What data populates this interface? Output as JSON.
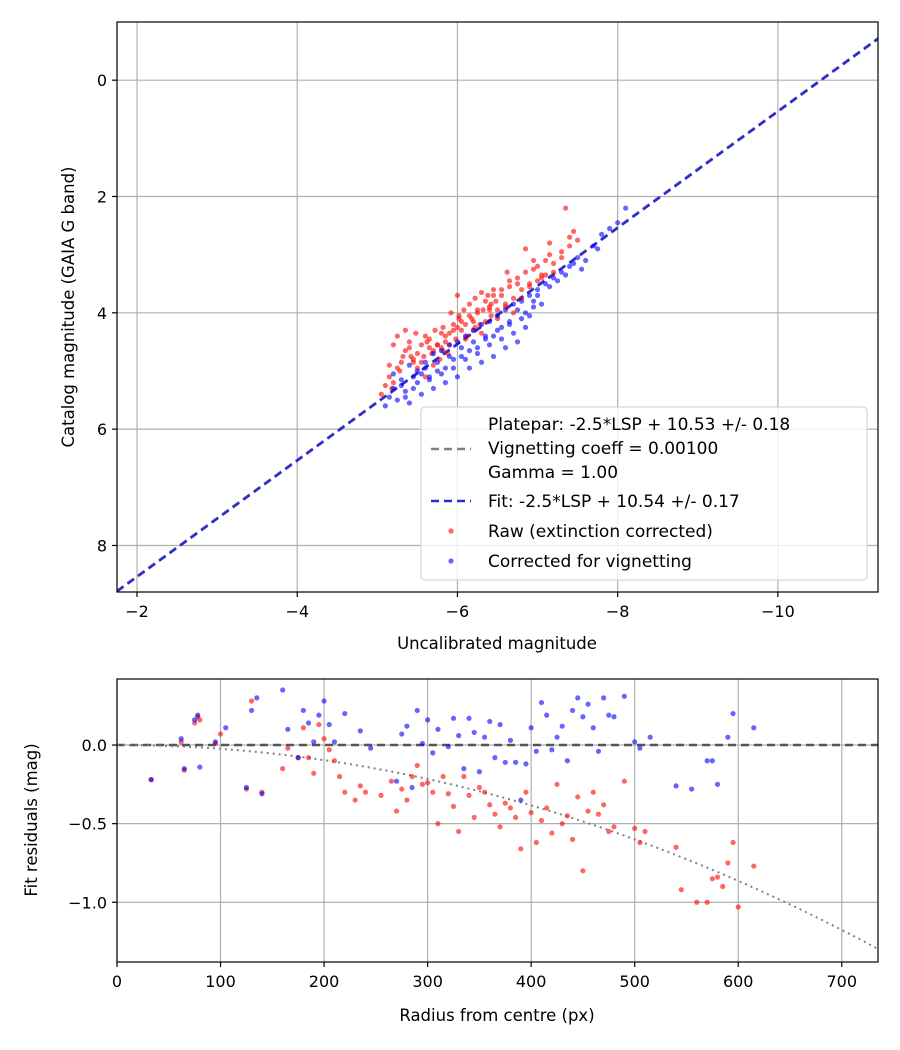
{
  "chart_data": [
    {
      "type": "scatter",
      "title": "",
      "xlabel": "Uncalibrated magnitude",
      "ylabel": "Catalog magnitude (GAIA G band)",
      "xlim": [
        -1.75,
        -11.25
      ],
      "ylim": [
        8.8,
        -1.0
      ],
      "x_ticks": [
        -2,
        -4,
        -6,
        -8,
        -10
      ],
      "x_tick_labels": [
        "−2",
        "−4",
        "−6",
        "−8",
        "−10"
      ],
      "y_ticks": [
        0,
        2,
        4,
        6,
        8
      ],
      "y_tick_labels": [
        "0",
        "2",
        "4",
        "6",
        "8"
      ],
      "grid": true,
      "legend_position": "lower-right",
      "legend": [
        {
          "label": "Platepar: -2.5*LSP + 10.53 +/- 0.18",
          "style": "none"
        },
        {
          "label": "Vignetting coeff = 0.00100",
          "style": "dashed",
          "color": "#808080"
        },
        {
          "label": "Gamma = 1.00",
          "style": "none"
        },
        {
          "label": "Fit: -2.5*LSP + 10.54 +/- 0.17",
          "style": "dashed",
          "color": "#2b2bd6"
        },
        {
          "label": "Raw (extinction corrected)",
          "style": "marker",
          "color": "#ff0000"
        },
        {
          "label": "Corrected for vignetting",
          "style": "marker",
          "color": "#0000ff"
        }
      ],
      "lines": [
        {
          "name": "Platepar",
          "slope": 1.0,
          "intercept": 10.53,
          "style": "dashed",
          "color": "#808080"
        },
        {
          "name": "Fit",
          "slope": 1.0,
          "intercept": 10.54,
          "style": "dashed",
          "color": "#2b2bd6"
        }
      ],
      "series": [
        {
          "name": "Raw (extinction corrected)",
          "color": "#ff0000",
          "x": [
            -5.05,
            -5.1,
            -5.15,
            -5.2,
            -5.25,
            -5.28,
            -5.32,
            -5.35,
            -5.4,
            -5.45,
            -5.48,
            -5.5,
            -5.55,
            -5.58,
            -5.6,
            -5.65,
            -5.68,
            -5.7,
            -5.72,
            -5.75,
            -5.78,
            -5.8,
            -5.82,
            -5.85,
            -5.88,
            -5.9,
            -5.92,
            -5.95,
            -5.98,
            -6.0,
            -6.02,
            -6.05,
            -6.08,
            -6.1,
            -6.12,
            -6.15,
            -6.18,
            -6.2,
            -6.22,
            -6.25,
            -6.28,
            -6.3,
            -6.32,
            -6.35,
            -6.38,
            -6.4,
            -6.42,
            -6.45,
            -6.48,
            -6.5,
            -6.55,
            -6.6,
            -6.65,
            -6.7,
            -6.75,
            -6.8,
            -6.85,
            -6.9,
            -6.95,
            -7.0,
            -7.05,
            -7.1,
            -7.15,
            -7.2,
            -7.3,
            -7.4,
            -7.45,
            -7.5,
            -5.2,
            -5.3,
            -5.4,
            -5.5,
            -5.6,
            -5.7,
            -5.8,
            -5.9,
            -6.0,
            -6.1,
            -6.2,
            -6.3,
            -6.4,
            -6.5,
            -6.6,
            -6.7,
            -6.8,
            -6.9,
            -7.0,
            -7.1,
            -7.2,
            -7.3,
            -7.4,
            -5.15,
            -5.35,
            -5.55,
            -5.75,
            -5.95,
            -6.15,
            -6.35,
            -6.55,
            -6.75,
            -6.95,
            -7.15,
            -7.35,
            -5.25,
            -5.45,
            -5.65,
            -5.85,
            -6.05,
            -6.25,
            -6.45,
            -6.65,
            -6.85,
            -7.05,
            -5.18,
            -5.42,
            -5.62,
            -5.82,
            -6.02,
            -6.22,
            -6.42,
            -6.62
          ],
          "y": [
            5.4,
            5.25,
            4.9,
            4.55,
            4.4,
            5.0,
            4.75,
            4.3,
            4.6,
            4.85,
            4.35,
            4.95,
            4.55,
            4.75,
            5.1,
            4.45,
            4.7,
            4.9,
            4.3,
            4.55,
            4.8,
            4.6,
            4.25,
            4.5,
            4.7,
            4.35,
            4.0,
            4.2,
            4.45,
            3.7,
            4.05,
            4.3,
            3.95,
            4.2,
            4.4,
            3.85,
            4.1,
            4.3,
            3.75,
            4.0,
            4.2,
            3.65,
            3.95,
            4.15,
            3.7,
            3.9,
            4.05,
            3.6,
            3.8,
            3.95,
            3.7,
            3.9,
            3.55,
            3.75,
            3.4,
            3.6,
            3.3,
            3.5,
            3.25,
            3.2,
            3.4,
            3.1,
            3.0,
            3.3,
            3.05,
            2.85,
            2.6,
            2.75,
            5.2,
            4.85,
            4.5,
            4.7,
            4.4,
            4.65,
            4.35,
            4.55,
            4.25,
            4.45,
            4.15,
            4.35,
            3.95,
            4.1,
            3.85,
            4.0,
            3.75,
            3.55,
            3.45,
            3.35,
            3.15,
            2.95,
            2.7,
            5.1,
            4.65,
            4.85,
            4.55,
            4.3,
            4.05,
            3.8,
            3.6,
            3.5,
            3.1,
            2.8,
            2.2,
            4.95,
            4.8,
            4.6,
            4.4,
            4.15,
            3.95,
            3.7,
            3.45,
            2.9,
            3.35,
            5.3,
            4.75,
            4.5,
            4.65,
            4.1,
            4.25,
            3.85,
            3.3
          ]
        },
        {
          "name": "Corrected for vignetting",
          "color": "#0000ff",
          "x": [
            -5.1,
            -5.15,
            -5.2,
            -5.25,
            -5.3,
            -5.35,
            -5.4,
            -5.45,
            -5.5,
            -5.55,
            -5.6,
            -5.65,
            -5.7,
            -5.75,
            -5.8,
            -5.85,
            -5.9,
            -5.95,
            -6.0,
            -6.05,
            -6.1,
            -6.15,
            -6.2,
            -6.25,
            -6.3,
            -6.35,
            -6.4,
            -6.45,
            -6.5,
            -6.55,
            -6.6,
            -6.65,
            -6.7,
            -6.75,
            -6.8,
            -6.85,
            -6.9,
            -6.95,
            -7.0,
            -7.05,
            -7.1,
            -7.2,
            -7.3,
            -7.4,
            -7.5,
            -7.6,
            -7.7,
            -7.8,
            -7.9,
            -8.0,
            -8.1,
            -5.2,
            -5.3,
            -5.4,
            -5.5,
            -5.6,
            -5.7,
            -5.8,
            -5.9,
            -6.0,
            -6.1,
            -6.2,
            -6.3,
            -6.4,
            -6.5,
            -6.6,
            -6.7,
            -6.8,
            -6.9,
            -7.0,
            -7.15,
            -7.25,
            -7.35,
            -7.55,
            -7.75,
            -5.35,
            -5.55,
            -5.75,
            -5.95,
            -6.15,
            -6.35,
            -6.55,
            -6.75,
            -6.95,
            -7.45,
            -5.45,
            -5.65,
            -5.85,
            -6.05,
            -6.25,
            -6.45,
            -6.65,
            -6.85
          ],
          "y": [
            5.6,
            5.45,
            5.3,
            5.5,
            5.15,
            5.35,
            5.55,
            5.1,
            5.2,
            5.4,
            4.95,
            5.15,
            5.3,
            4.85,
            5.05,
            5.2,
            4.75,
            4.95,
            5.1,
            4.6,
            4.8,
            4.95,
            4.5,
            4.7,
            4.85,
            4.4,
            4.55,
            4.75,
            4.3,
            4.45,
            4.6,
            4.2,
            4.35,
            4.5,
            4.1,
            4.25,
            4.05,
            3.9,
            3.7,
            3.85,
            3.5,
            3.4,
            3.3,
            3.2,
            3.05,
            3.1,
            2.85,
            2.65,
            2.55,
            2.45,
            2.2,
            5.05,
            5.25,
            4.9,
            5.0,
            4.85,
            4.7,
            4.65,
            4.55,
            4.5,
            4.4,
            4.3,
            4.2,
            4.15,
            4.05,
            3.95,
            3.85,
            3.8,
            3.7,
            3.6,
            3.55,
            3.45,
            3.35,
            3.25,
            2.9,
            5.45,
            5.05,
            5.0,
            4.8,
            4.65,
            4.45,
            4.25,
            3.95,
            3.8,
            3.15,
            5.3,
            5.1,
            4.95,
            4.75,
            4.6,
            4.4,
            4.15,
            4.0
          ]
        }
      ]
    },
    {
      "type": "scatter",
      "title": "",
      "xlabel": "Radius from centre (px)",
      "ylabel": "Fit residuals (mag)",
      "xlim": [
        0,
        735
      ],
      "ylim": [
        -1.38,
        0.42
      ],
      "x_ticks": [
        0,
        100,
        200,
        300,
        400,
        500,
        600,
        700
      ],
      "x_tick_labels": [
        "0",
        "100",
        "200",
        "300",
        "400",
        "500",
        "600",
        "700"
      ],
      "y_ticks": [
        0.0,
        -0.5,
        -1.0
      ],
      "y_tick_labels": [
        "0.0",
        "−0.5",
        "−1.0"
      ],
      "grid": true,
      "lines": [
        {
          "name": "zero",
          "value": 0.0,
          "style": "dashed",
          "color": "#555555"
        },
        {
          "name": "vignetting model",
          "coeff": 0.001,
          "style": "dotted",
          "color": "#808080"
        }
      ],
      "series": [
        {
          "name": "Raw (extinction corrected)",
          "color": "#ff0000",
          "x": [
            33,
            62,
            65,
            75,
            78,
            80,
            95,
            100,
            125,
            130,
            140,
            160,
            165,
            175,
            180,
            185,
            190,
            195,
            200,
            205,
            210,
            215,
            220,
            230,
            235,
            240,
            255,
            265,
            270,
            275,
            280,
            285,
            290,
            295,
            300,
            305,
            310,
            315,
            320,
            325,
            330,
            335,
            340,
            345,
            350,
            355,
            360,
            365,
            370,
            375,
            380,
            385,
            390,
            395,
            400,
            405,
            410,
            415,
            420,
            425,
            430,
            435,
            440,
            445,
            450,
            455,
            460,
            465,
            470,
            475,
            480,
            490,
            500,
            505,
            510,
            540,
            545,
            560,
            570,
            575,
            580,
            585,
            590,
            595,
            600,
            615
          ],
          "y": [
            -0.22,
            0.02,
            -0.16,
            0.14,
            0.18,
            0.16,
            0.01,
            0.07,
            -0.28,
            0.28,
            -0.3,
            -0.15,
            -0.02,
            -0.08,
            0.11,
            -0.08,
            -0.18,
            0.13,
            0.04,
            -0.03,
            -0.1,
            -0.2,
            -0.3,
            -0.35,
            -0.26,
            -0.3,
            -0.32,
            -0.23,
            -0.42,
            -0.28,
            -0.35,
            -0.2,
            -0.13,
            -0.25,
            -0.24,
            -0.3,
            -0.5,
            -0.2,
            -0.31,
            -0.39,
            -0.55,
            -0.2,
            -0.32,
            -0.46,
            -0.27,
            -0.3,
            -0.38,
            -0.44,
            -0.52,
            -0.37,
            -0.4,
            -0.46,
            -0.66,
            -0.3,
            -0.43,
            -0.62,
            -0.48,
            -0.4,
            -0.56,
            -0.25,
            -0.5,
            -0.45,
            -0.6,
            -0.33,
            -0.8,
            -0.42,
            -0.3,
            -0.44,
            -0.38,
            -0.55,
            -0.52,
            -0.23,
            -0.53,
            -0.62,
            -0.55,
            -0.65,
            -0.92,
            -1.0,
            -1.0,
            -0.85,
            -0.84,
            -0.9,
            -0.75,
            -0.62,
            -1.03,
            -0.77
          ]
        },
        {
          "name": "Corrected for vignetting",
          "color": "#0000ff",
          "x": [
            33,
            62,
            65,
            75,
            78,
            80,
            95,
            105,
            125,
            130,
            135,
            140,
            160,
            165,
            175,
            180,
            185,
            190,
            195,
            200,
            205,
            210,
            220,
            235,
            245,
            270,
            275,
            280,
            285,
            290,
            295,
            300,
            305,
            310,
            320,
            325,
            330,
            335,
            340,
            345,
            350,
            355,
            360,
            365,
            370,
            375,
            380,
            385,
            390,
            395,
            400,
            405,
            410,
            415,
            420,
            425,
            430,
            435,
            440,
            445,
            450,
            455,
            460,
            465,
            470,
            475,
            480,
            490,
            500,
            505,
            515,
            540,
            555,
            570,
            575,
            580,
            590,
            595,
            615
          ],
          "y": [
            -0.22,
            0.04,
            -0.15,
            0.16,
            0.19,
            -0.14,
            0.02,
            0.11,
            -0.27,
            0.22,
            0.3,
            -0.31,
            0.35,
            0.1,
            -0.08,
            0.22,
            0.14,
            0.02,
            0.19,
            0.28,
            0.13,
            0.02,
            0.2,
            0.09,
            -0.02,
            -0.23,
            0.07,
            0.12,
            -0.27,
            0.22,
            0.01,
            0.16,
            -0.05,
            0.1,
            -0.01,
            0.17,
            0.06,
            -0.15,
            0.17,
            0.08,
            -0.17,
            0.05,
            0.15,
            -0.08,
            0.13,
            -0.11,
            0.03,
            -0.11,
            -0.35,
            -0.12,
            0.11,
            -0.04,
            0.27,
            0.19,
            -0.03,
            0.05,
            0.12,
            -0.1,
            0.22,
            0.3,
            0.18,
            0.26,
            0.11,
            -0.04,
            0.3,
            0.19,
            0.18,
            0.31,
            0.02,
            -0.02,
            0.05,
            -0.26,
            -0.28,
            -0.1,
            -0.1,
            -0.25,
            0.05,
            0.2,
            0.11
          ]
        }
      ]
    }
  ]
}
